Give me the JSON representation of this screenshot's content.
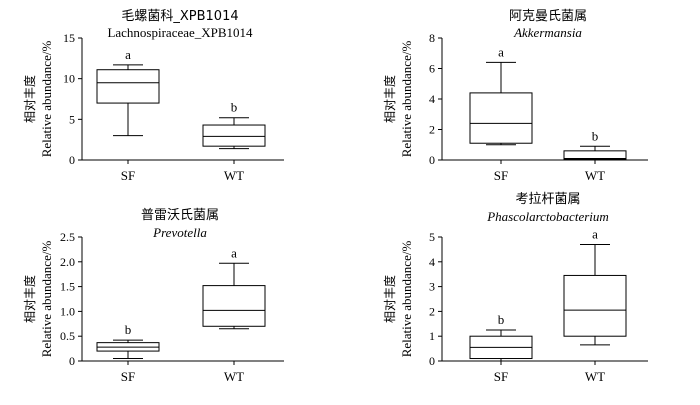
{
  "chart_data": [
    {
      "type": "box",
      "title": "毛螺菌科_XPB1014",
      "subtitle": "Lachnospiraceae_XPB1014",
      "subtitle_italic": false,
      "ylabel_cn": "相对丰度",
      "ylabel_en": "Relative abundance/%",
      "ylim": [
        0,
        15
      ],
      "yticks": [
        "0",
        "5",
        "10",
        "15"
      ],
      "categories": [
        "SF",
        "WT"
      ],
      "boxes": [
        {
          "group": "SF",
          "min": 3.0,
          "q1": 7.0,
          "median": 9.5,
          "q3": 11.1,
          "max": 11.7,
          "letter": "a"
        },
        {
          "group": "WT",
          "min": 1.4,
          "q1": 1.7,
          "median": 2.9,
          "q3": 4.3,
          "max": 5.2,
          "letter": "b"
        }
      ]
    },
    {
      "type": "box",
      "title": "阿克曼氏菌属",
      "subtitle": "Akkermansia",
      "subtitle_italic": true,
      "ylabel_cn": "相对丰度",
      "ylabel_en": "Relative abundance/%",
      "ylim": [
        0,
        8
      ],
      "yticks": [
        "0",
        "2",
        "4",
        "6",
        "8"
      ],
      "categories": [
        "SF",
        "WT"
      ],
      "boxes": [
        {
          "group": "SF",
          "min": 1.0,
          "q1": 1.1,
          "median": 2.4,
          "q3": 4.4,
          "max": 6.4,
          "letter": "a"
        },
        {
          "group": "WT",
          "min": 0.0,
          "q1": 0.05,
          "median": 0.1,
          "q3": 0.6,
          "max": 0.9,
          "letter": "b"
        }
      ]
    },
    {
      "type": "box",
      "title": "普雷沃氏菌属",
      "subtitle": "Prevotella",
      "subtitle_italic": true,
      "ylabel_cn": "相对丰度",
      "ylabel_en": "Relative abundance/%",
      "ylim": [
        0,
        2.5
      ],
      "yticks": [
        "0",
        "0.5",
        "1.0",
        "1.5",
        "2.0",
        "2.5"
      ],
      "categories": [
        "SF",
        "WT"
      ],
      "boxes": [
        {
          "group": "SF",
          "min": 0.05,
          "q1": 0.2,
          "median": 0.28,
          "q3": 0.37,
          "max": 0.42,
          "letter": "b"
        },
        {
          "group": "WT",
          "min": 0.65,
          "q1": 0.7,
          "median": 1.02,
          "q3": 1.52,
          "max": 1.97,
          "letter": "a"
        }
      ]
    },
    {
      "type": "box",
      "title": "考拉杆菌属",
      "subtitle": "Phascolarctobacterium",
      "subtitle_italic": true,
      "ylabel_cn": "相对丰度",
      "ylabel_en": "Relative abundance/%",
      "ylim": [
        0,
        5
      ],
      "yticks": [
        "0",
        "1",
        "2",
        "3",
        "4",
        "5"
      ],
      "categories": [
        "SF",
        "WT"
      ],
      "boxes": [
        {
          "group": "SF",
          "min": 0.0,
          "q1": 0.1,
          "median": 0.55,
          "q3": 1.0,
          "max": 1.25,
          "letter": "b"
        },
        {
          "group": "WT",
          "min": 0.65,
          "q1": 1.0,
          "median": 2.05,
          "q3": 3.45,
          "max": 4.7,
          "letter": "a"
        }
      ]
    }
  ]
}
